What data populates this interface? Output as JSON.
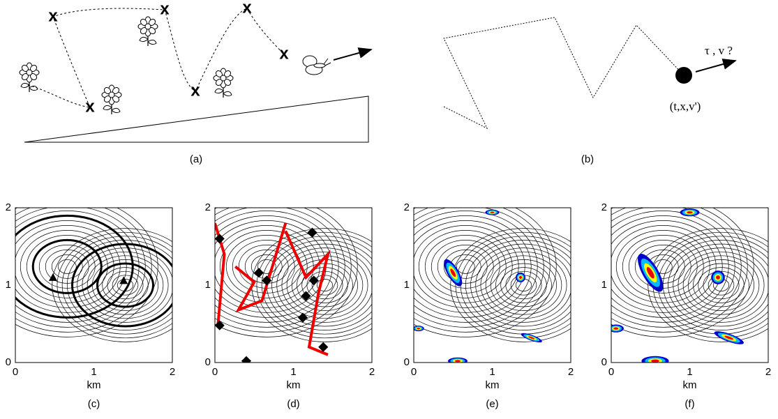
{
  "panels_top": [
    {
      "label": "(a)",
      "markers": [
        "x",
        "x",
        "x",
        "x",
        "x",
        "x"
      ]
    },
    {
      "label": "(b)",
      "arrow_label": "τ , v ?",
      "point_label": "(t,x,v')"
    }
  ],
  "panels_bottom": [
    {
      "label": "(c)",
      "x_axis_label": "km",
      "x_ticks": [
        "0",
        "1",
        "2"
      ],
      "y_ticks": [
        "0",
        "1",
        "2"
      ]
    },
    {
      "label": "(d)",
      "x_axis_label": "km",
      "x_ticks": [
        "0",
        "1",
        "2"
      ],
      "y_ticks": [
        "0",
        "1",
        "2"
      ]
    },
    {
      "label": "(e)",
      "x_axis_label": "km",
      "x_ticks": [
        "0",
        "1",
        "2"
      ],
      "y_ticks": [
        "0",
        "1",
        "2"
      ]
    },
    {
      "label": "(f)",
      "x_axis_label": "km",
      "x_ticks": [
        "0",
        "1",
        "2"
      ],
      "y_ticks": [
        "0",
        "1",
        "2"
      ]
    }
  ]
}
